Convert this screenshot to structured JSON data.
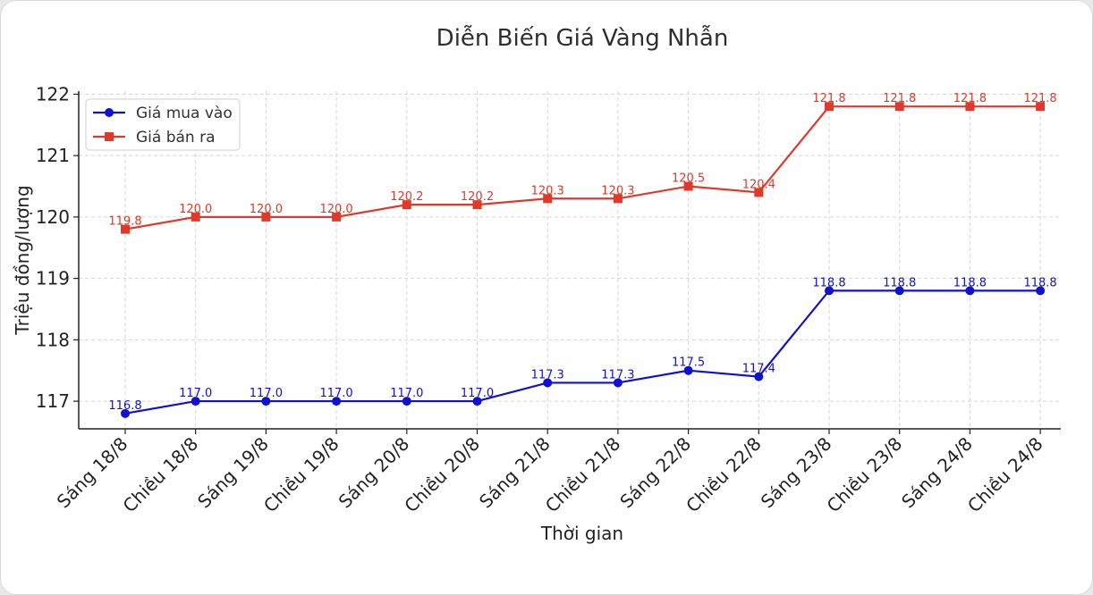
{
  "chart_data": {
    "type": "line",
    "title": "Diễn Biến Giá Vàng Nhẫn",
    "xlabel": "Thời gian",
    "ylabel": "Triệu đồng/lượng",
    "ylim": [
      116.55,
      122.05
    ],
    "yticks": [
      117,
      118,
      119,
      120,
      121,
      122
    ],
    "grid": true,
    "legend_position": "top-left",
    "categories": [
      "Sáng 18/8",
      "Chiều 18/8",
      "Sáng 19/8",
      "Chiều 19/8",
      "Sáng 20/8",
      "Chiều 20/8",
      "Sáng 21/8",
      "Chiều 21/8",
      "Sáng 22/8",
      "Chiều 22/8",
      "Sáng 23/8",
      "Chiều 23/8",
      "Sáng 24/8",
      "Chiều 24/8"
    ],
    "series": [
      {
        "name": "Giá mua vào",
        "color": "#1010d0",
        "marker": "circle",
        "values": [
          116.8,
          117.0,
          117.0,
          117.0,
          117.0,
          117.0,
          117.3,
          117.3,
          117.5,
          117.4,
          118.8,
          118.8,
          118.8,
          118.8
        ],
        "labels": [
          "116.8",
          "117.0",
          "117.0",
          "117.0",
          "117.0",
          "117.0",
          "117.3",
          "117.3",
          "117.5",
          "117.4",
          "118.8",
          "118.8",
          "118.8",
          "118.8"
        ]
      },
      {
        "name": "Giá bán ra",
        "color": "#e0392b",
        "marker": "square",
        "values": [
          119.8,
          120.0,
          120.0,
          120.0,
          120.2,
          120.2,
          120.3,
          120.3,
          120.5,
          120.4,
          121.8,
          121.8,
          121.8,
          121.8
        ],
        "labels": [
          "119.8",
          "120.0",
          "120.0",
          "120.0",
          "120.2",
          "120.2",
          "120.3",
          "120.3",
          "120.5",
          "120.4",
          "121.8",
          "121.8",
          "121.8",
          "121.8"
        ]
      }
    ]
  }
}
